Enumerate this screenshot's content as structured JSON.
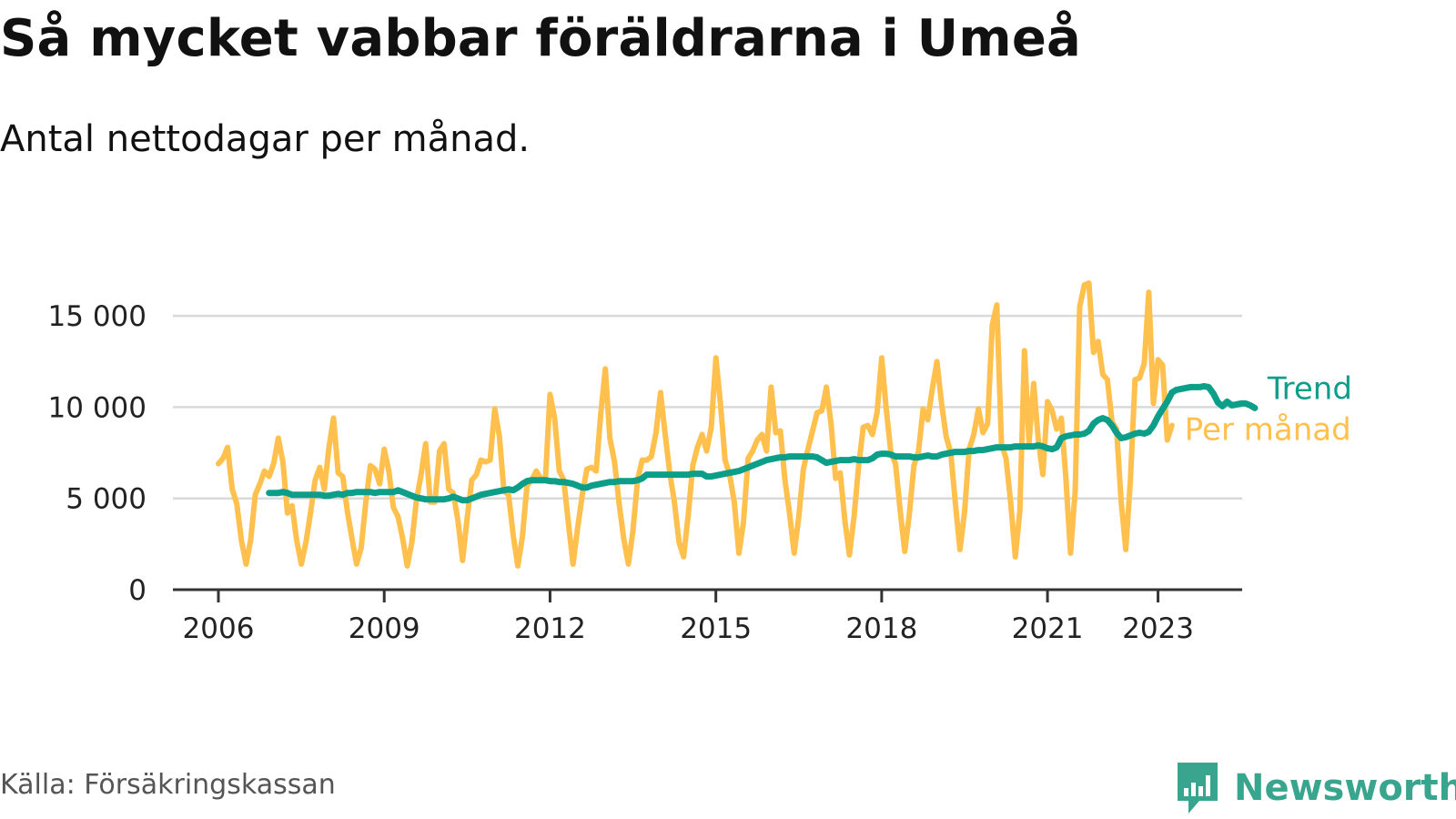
{
  "title": "Så mycket vabbar föräldrarna i Umeå",
  "subtitle": "Antal nettodagar per månad.",
  "source": "Källa: Försäkringskassan",
  "brand": {
    "name": "Newsworthy",
    "icon": "newsworthy-logo-icon",
    "color": "#3aa58e"
  },
  "chart_data": {
    "type": "line",
    "title": "Så mycket vabbar föräldrarna i Umeå",
    "subtitle": "Antal nettodagar per månad.",
    "xlabel": "",
    "ylabel": "",
    "x_ticks": [
      "2006",
      "2009",
      "2012",
      "2015",
      "2018",
      "2021",
      "2023"
    ],
    "y_ticks": [
      "0",
      "5 000",
      "10 000",
      "15 000"
    ],
    "y_tick_values": [
      0,
      5000,
      10000,
      15000
    ],
    "xlim": [
      "2006-01",
      "2023-08"
    ],
    "ylim": [
      0,
      17500
    ],
    "grid": "horizontal",
    "legend": "direct labels at line ends, right",
    "series": [
      {
        "name": "Per månad",
        "color": "#ffc04d",
        "x_start": "2006-01",
        "frequency": "monthly",
        "values": [
          6900,
          7200,
          7800,
          5500,
          4700,
          2700,
          1400,
          2700,
          5200,
          5800,
          6500,
          6200,
          6900,
          8300,
          7000,
          4200,
          4600,
          2700,
          1400,
          2600,
          4200,
          6000,
          6700,
          5500,
          7800,
          9400,
          6400,
          6200,
          4300,
          2800,
          1400,
          2300,
          4800,
          6800,
          6600,
          5800,
          7700,
          6500,
          4500,
          4000,
          2800,
          1300,
          2600,
          4900,
          6300,
          8000,
          4800,
          4800,
          7600,
          8000,
          5500,
          5300,
          3800,
          1600,
          3900,
          6000,
          6300,
          7100,
          7000,
          7100,
          9900,
          8400,
          5400,
          5200,
          3000,
          1300,
          2900,
          5700,
          6000,
          6500,
          6100,
          6100,
          10700,
          9400,
          6500,
          6000,
          3600,
          1400,
          3400,
          5200,
          6600,
          6700,
          6500,
          9600,
          12100,
          8300,
          7000,
          4700,
          2800,
          1400,
          3200,
          6000,
          7100,
          7100,
          7300,
          8600,
          10800,
          8500,
          6400,
          4800,
          2600,
          1800,
          4100,
          6800,
          7800,
          8500,
          7600,
          8900,
          12700,
          10200,
          7100,
          6300,
          4800,
          2000,
          3700,
          7200,
          7600,
          8200,
          8500,
          7600,
          11100,
          8600,
          8700,
          6000,
          4200,
          2000,
          4000,
          6600,
          7700,
          8700,
          9700,
          9800,
          11100,
          9100,
          6100,
          6400,
          3800,
          1900,
          4000,
          6800,
          8900,
          9000,
          8500,
          9700,
          12700,
          9900,
          7500,
          6900,
          4400,
          2100,
          4100,
          6800,
          7600,
          9900,
          9300,
          11000,
          12500,
          10200,
          8400,
          7500,
          4700,
          2200,
          4300,
          7700,
          8500,
          9900,
          8600,
          9100,
          14500,
          15600,
          8000,
          7200,
          4800,
          1800,
          4300,
          13100,
          8000,
          11300,
          8200,
          6300,
          10300,
          9800,
          8800,
          9400,
          6100,
          2000,
          5400,
          15500,
          16700,
          16800,
          13000,
          13600,
          11800,
          11500,
          9200,
          8800,
          4800,
          2200,
          6000,
          11500,
          11600,
          12400,
          16300,
          10200,
          12600,
          12300,
          8200,
          9000
        ]
      },
      {
        "name": "Trend",
        "color": "#0d9e8a",
        "x_start": "2006-12",
        "frequency": "monthly",
        "values": [
          5300,
          5300,
          5300,
          5350,
          5300,
          5200,
          5200,
          5200,
          5200,
          5200,
          5200,
          5200,
          5150,
          5150,
          5200,
          5250,
          5200,
          5300,
          5300,
          5350,
          5350,
          5350,
          5350,
          5300,
          5350,
          5350,
          5350,
          5350,
          5450,
          5350,
          5250,
          5150,
          5050,
          5000,
          4950,
          4950,
          4950,
          4950,
          4950,
          5000,
          5100,
          5000,
          4900,
          4900,
          5000,
          5100,
          5200,
          5250,
          5300,
          5350,
          5400,
          5450,
          5500,
          5450,
          5600,
          5800,
          5950,
          6000,
          6000,
          6000,
          6000,
          5950,
          5950,
          5900,
          5900,
          5850,
          5800,
          5700,
          5600,
          5600,
          5700,
          5750,
          5800,
          5850,
          5900,
          5900,
          5950,
          5950,
          5950,
          5950,
          6000,
          6100,
          6300,
          6300,
          6300,
          6300,
          6300,
          6300,
          6300,
          6300,
          6300,
          6300,
          6350,
          6350,
          6350,
          6200,
          6200,
          6250,
          6300,
          6350,
          6400,
          6450,
          6500,
          6600,
          6700,
          6800,
          6900,
          7000,
          7100,
          7150,
          7200,
          7250,
          7250,
          7300,
          7300,
          7300,
          7300,
          7300,
          7300,
          7250,
          7100,
          6950,
          7000,
          7050,
          7100,
          7100,
          7100,
          7150,
          7100,
          7100,
          7100,
          7200,
          7400,
          7450,
          7450,
          7400,
          7300,
          7300,
          7300,
          7300,
          7250,
          7250,
          7300,
          7350,
          7300,
          7300,
          7400,
          7450,
          7500,
          7550,
          7550,
          7550,
          7600,
          7600,
          7650,
          7650,
          7700,
          7750,
          7800,
          7800,
          7800,
          7800,
          7850,
          7850,
          7850,
          7850,
          7850,
          7900,
          7850,
          7750,
          7700,
          7800,
          8300,
          8400,
          8450,
          8500,
          8500,
          8550,
          8700,
          9100,
          9300,
          9400,
          9300,
          9000,
          8600,
          8300,
          8350,
          8450,
          8550,
          8600,
          8550,
          8650,
          9000,
          9500,
          9900,
          10300,
          10800,
          10950,
          11000,
          11050,
          11100,
          11100,
          11100,
          11150,
          11100,
          10750,
          10250,
          10050,
          10300,
          10100,
          10150,
          10200,
          10200,
          10100,
          9950
        ]
      }
    ]
  }
}
